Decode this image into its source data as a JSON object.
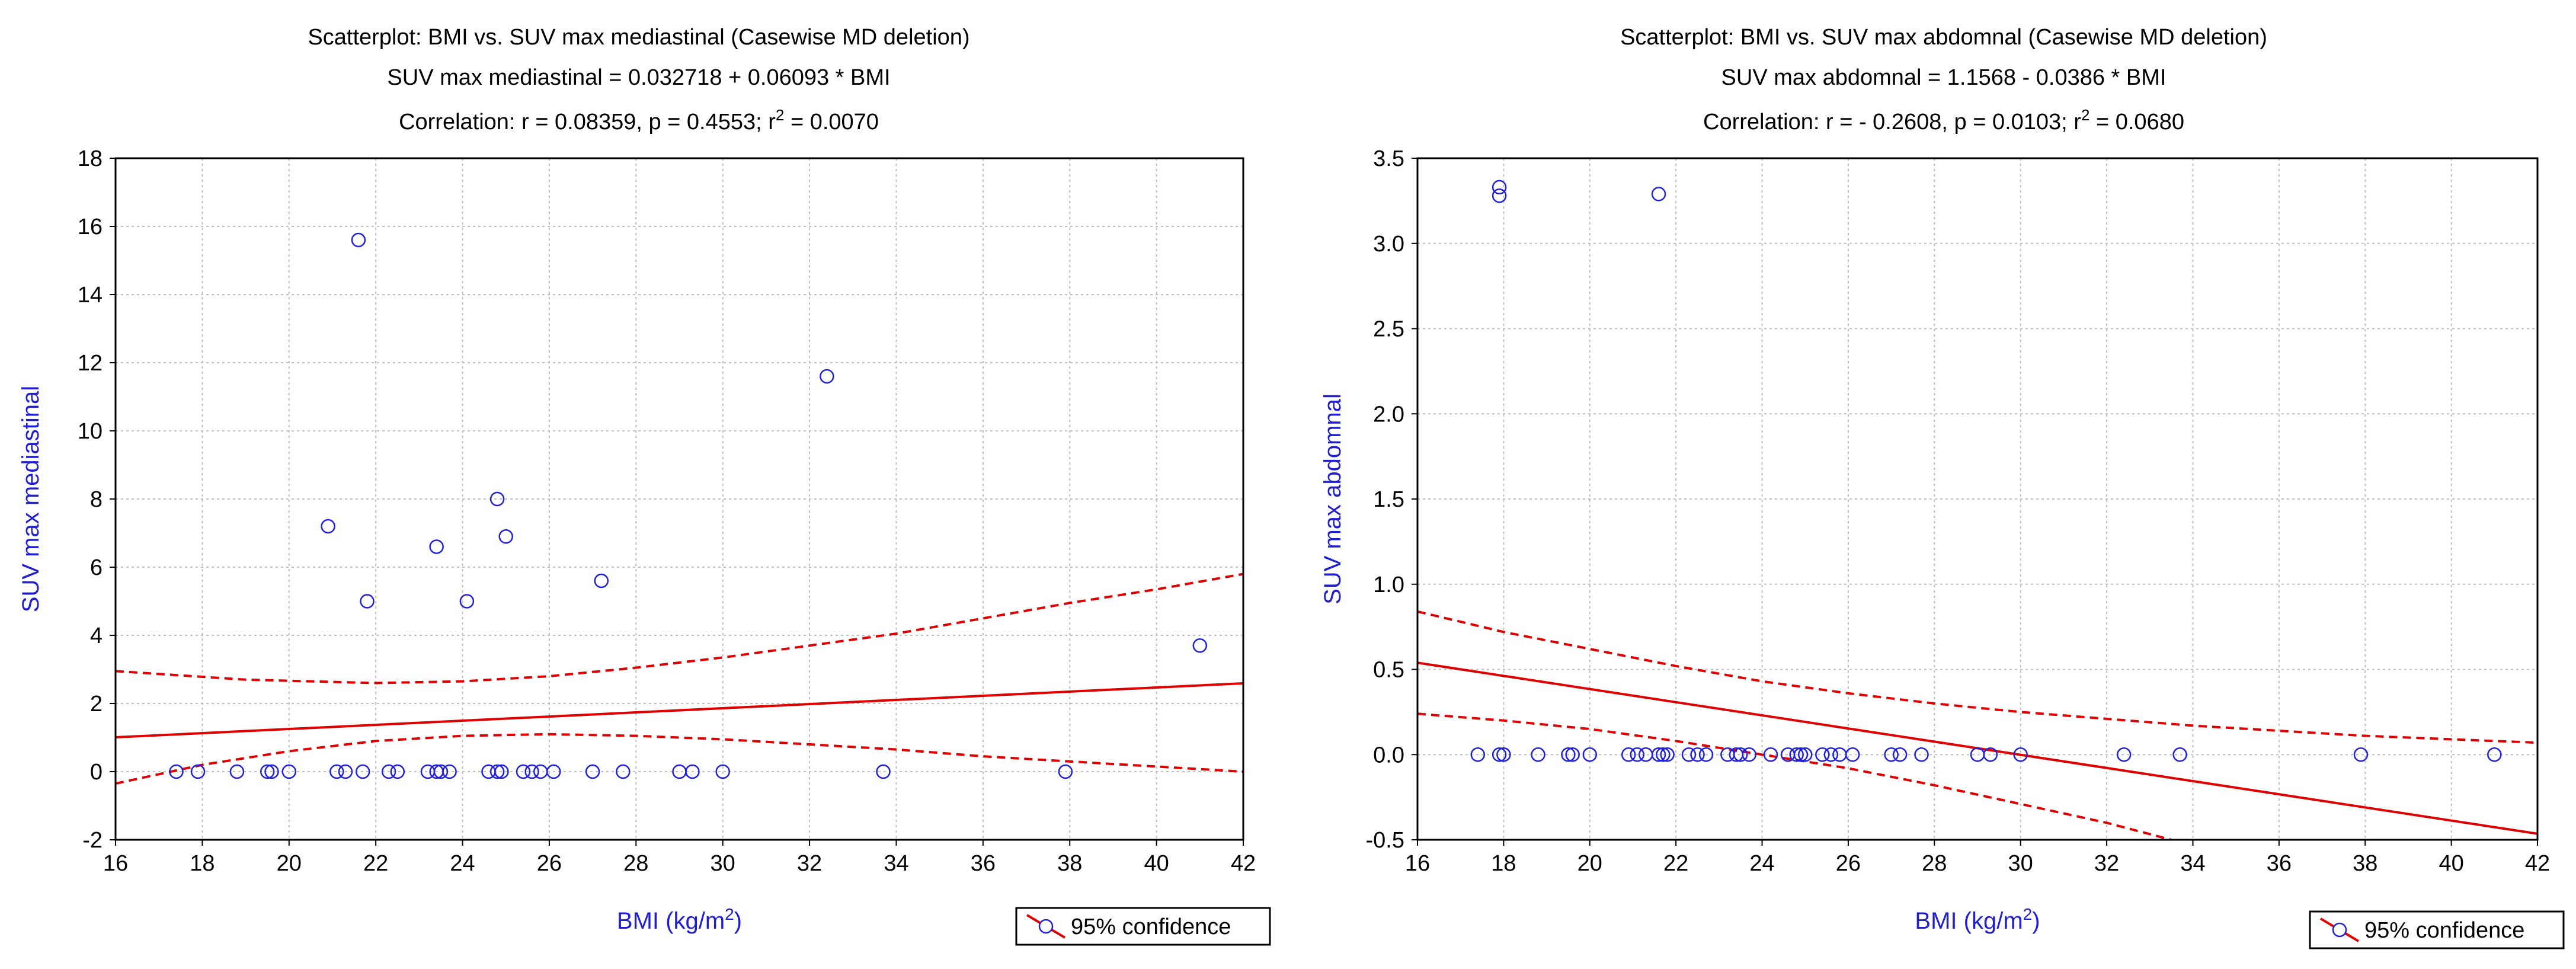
{
  "colors": {
    "points": "#2020dd",
    "fit_line": "#e00000",
    "ci_line": "#e00000",
    "axis_label": "#1f1fcf",
    "text": "#000000",
    "grid": "#bfbfbf",
    "background": "#ffffff"
  },
  "chart_data": [
    {
      "type": "scatter",
      "title": "Scatterplot: BMI vs. SUV max mediastinal (Casewise MD deletion)",
      "equation": "SUV max mediastinal = 0.032718 + 0.06093 * BMI",
      "correlation_prefix": "Correlation: r = 0.08359, p = 0.4553; r",
      "correlation_suffix": " = 0.0070",
      "xlabel": "BMI (kg/m",
      "xlabel_suffix": ")",
      "ylabel": "SUV max mediastinal",
      "xlim": [
        16,
        42
      ],
      "ylim": [
        -2,
        18
      ],
      "xticks": [
        16,
        18,
        20,
        22,
        24,
        26,
        28,
        30,
        32,
        34,
        36,
        38,
        40,
        42
      ],
      "yticks": [
        -2,
        0,
        2,
        4,
        6,
        8,
        10,
        12,
        14,
        16,
        18
      ],
      "ytick_decimals": 0,
      "grid": true,
      "legend": {
        "label": "95% confidence",
        "position": "bottom-right"
      },
      "fit": {
        "intercept": 0.032718,
        "slope": 0.06093
      },
      "ci_upper": {
        "x": [
          16,
          19,
          22,
          24,
          26,
          28,
          30,
          32,
          34,
          36,
          38,
          40,
          42
        ],
        "y": [
          2.95,
          2.7,
          2.6,
          2.65,
          2.8,
          3.05,
          3.35,
          3.7,
          4.05,
          4.5,
          4.95,
          5.35,
          5.8
        ]
      },
      "ci_lower": {
        "x": [
          16,
          18,
          20,
          22,
          24,
          26,
          28,
          30,
          32,
          34,
          36,
          38,
          40,
          42
        ],
        "y": [
          -0.35,
          0.2,
          0.6,
          0.9,
          1.05,
          1.1,
          1.05,
          0.95,
          0.8,
          0.65,
          0.45,
          0.3,
          0.15,
          0.0
        ]
      },
      "points": {
        "x": [
          17.4,
          17.9,
          18.8,
          19.5,
          19.6,
          20.0,
          20.9,
          21.1,
          21.3,
          21.6,
          21.7,
          21.8,
          22.3,
          22.5,
          23.2,
          23.4,
          23.4,
          23.5,
          23.7,
          24.1,
          24.6,
          24.8,
          24.8,
          24.9,
          25.0,
          25.4,
          25.6,
          25.8,
          26.1,
          27.0,
          27.2,
          27.7,
          29.0,
          29.3,
          30.0,
          32.4,
          33.7,
          37.9,
          41.0
        ],
        "y": [
          0,
          0,
          0,
          0,
          0,
          0,
          7.2,
          0,
          0,
          15.6,
          0,
          5.0,
          0,
          0,
          0,
          0,
          6.6,
          0,
          0,
          5.0,
          0,
          0,
          8.0,
          0,
          6.9,
          0,
          0,
          0,
          0,
          0,
          5.6,
          0,
          0,
          0,
          0,
          11.6,
          0,
          0,
          3.7
        ]
      }
    },
    {
      "type": "scatter",
      "title": "Scatterplot: BMI vs. SUV max abdomnal (Casewise MD deletion)",
      "equation": "SUV max abdomnal = 1.1568 - 0.0386  * BMI",
      "correlation_prefix": "Correlation: r = - 0.2608, p = 0.0103; r",
      "correlation_suffix": " = 0.0680",
      "xlabel": "BMI (kg/m",
      "xlabel_suffix": ")",
      "ylabel": "SUV max abdomnal",
      "xlim": [
        16,
        42
      ],
      "ylim": [
        -0.5,
        3.5
      ],
      "xticks": [
        16,
        18,
        20,
        22,
        24,
        26,
        28,
        30,
        32,
        34,
        36,
        38,
        40,
        42
      ],
      "yticks": [
        -0.5,
        0.0,
        0.5,
        1.0,
        1.5,
        2.0,
        2.5,
        3.0,
        3.5
      ],
      "ytick_decimals": 1,
      "grid": true,
      "legend": {
        "label": "95% confidence",
        "position": "bottom-right"
      },
      "fit": {
        "intercept": 1.1568,
        "slope": -0.0386
      },
      "ci_upper": {
        "x": [
          16,
          18,
          20,
          22,
          24,
          26,
          28,
          30,
          32,
          34,
          36,
          38,
          40,
          42
        ],
        "y": [
          0.84,
          0.72,
          0.62,
          0.52,
          0.43,
          0.36,
          0.3,
          0.25,
          0.21,
          0.17,
          0.14,
          0.11,
          0.09,
          0.07
        ]
      },
      "ci_lower": {
        "x": [
          16,
          18,
          20,
          22,
          24,
          26,
          28,
          30,
          32,
          33.5
        ],
        "y": [
          0.24,
          0.2,
          0.15,
          0.08,
          0.0,
          -0.08,
          -0.18,
          -0.29,
          -0.4,
          -0.5
        ]
      },
      "points": {
        "x": [
          17.4,
          17.9,
          17.9,
          17.9,
          18.0,
          18.8,
          19.5,
          19.6,
          20.0,
          20.9,
          21.1,
          21.3,
          21.6,
          21.6,
          21.7,
          21.8,
          22.3,
          22.5,
          22.7,
          23.2,
          23.4,
          23.5,
          23.7,
          24.2,
          24.6,
          24.8,
          24.9,
          25.0,
          25.4,
          25.6,
          25.8,
          26.1,
          27.0,
          27.2,
          27.7,
          29.0,
          29.3,
          30.0,
          32.4,
          33.7,
          37.9,
          41.0
        ],
        "y": [
          0,
          3.33,
          3.28,
          0,
          0,
          0,
          0,
          0,
          0,
          0,
          0,
          0,
          3.29,
          0,
          0,
          0,
          0,
          0,
          0,
          0,
          0,
          0,
          0,
          0,
          0,
          0,
          0,
          0,
          0,
          0,
          0,
          0,
          0,
          0,
          0,
          0,
          0,
          0,
          0,
          0,
          0,
          0
        ]
      }
    }
  ]
}
